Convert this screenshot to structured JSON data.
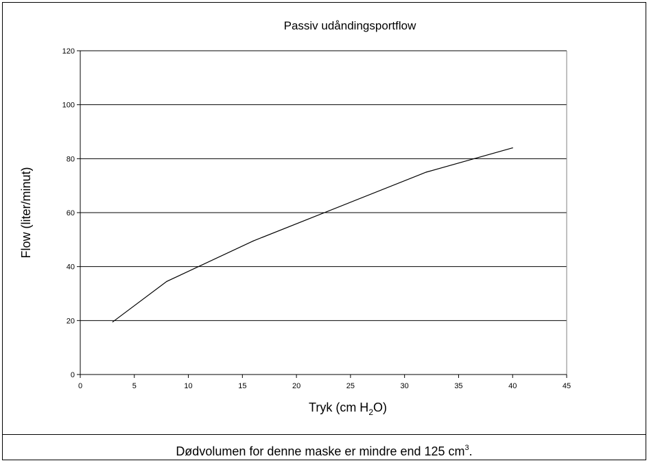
{
  "chart_data": {
    "type": "line",
    "title": "Passiv udåndingsportflow",
    "xlabel": {
      "prefix": "Tryk (cm H",
      "sub": "2",
      "suffix": "O)"
    },
    "ylabel": "Flow (liter/minut)",
    "xlim": [
      0,
      45
    ],
    "ylim": [
      0,
      120
    ],
    "xticks": [
      0,
      5,
      10,
      15,
      20,
      25,
      30,
      35,
      40,
      45
    ],
    "yticks": [
      0,
      20,
      40,
      60,
      80,
      100,
      120
    ],
    "grid": "horizontal",
    "legend": "none",
    "line_color": "#000000",
    "series": [
      {
        "x": [
          3,
          8,
          16,
          32,
          40
        ],
        "y": [
          19.5,
          34.5,
          49.5,
          75,
          84
        ]
      }
    ]
  },
  "caption": {
    "text": "Dødvolumen for denne maske er mindre end 125 cm",
    "sup": "3",
    "end": "."
  }
}
